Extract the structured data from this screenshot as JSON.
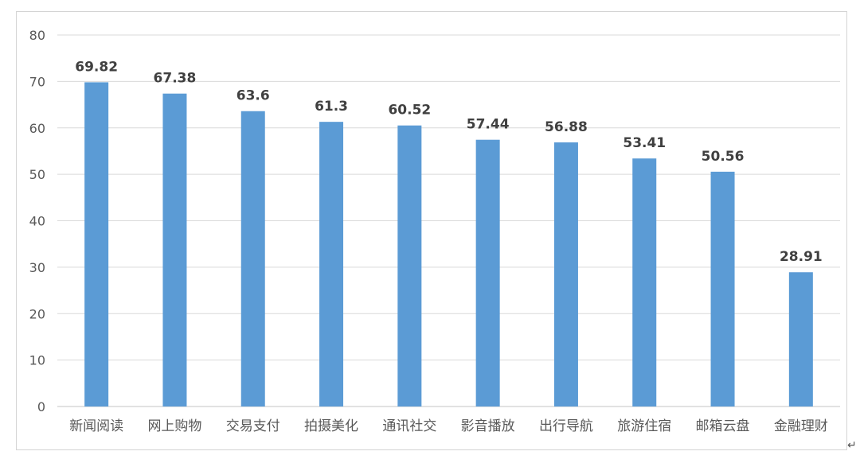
{
  "chart_data": {
    "type": "bar",
    "categories": [
      "新闻阅读",
      "网上购物",
      "交易支付",
      "拍摄美化",
      "通讯社交",
      "影音播放",
      "出行导航",
      "旅游住宿",
      "邮箱云盘",
      "金融理财"
    ],
    "values": [
      69.82,
      67.38,
      63.6,
      61.3,
      60.52,
      57.44,
      56.88,
      53.41,
      50.56,
      28.91
    ],
    "value_labels": [
      "69.82",
      "67.38",
      "63.6",
      "61.3",
      "60.52",
      "57.44",
      "56.88",
      "53.41",
      "50.56",
      "28.91"
    ],
    "title": "",
    "xlabel": "",
    "ylabel": "",
    "ylim": [
      0,
      80
    ],
    "yticks": [
      0,
      10,
      20,
      30,
      40,
      50,
      60,
      70,
      80
    ],
    "grid": true,
    "legend": "none",
    "bar_color": "#5B9BD5",
    "grid_color": "#d9d9d9"
  },
  "corner_mark": "↵"
}
